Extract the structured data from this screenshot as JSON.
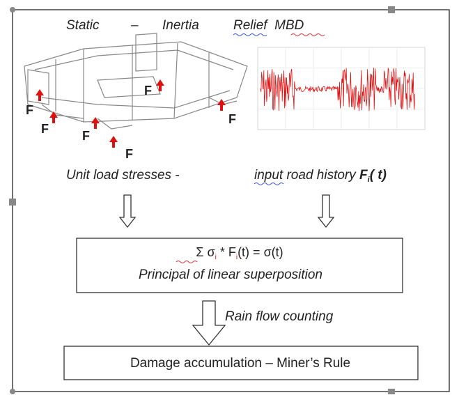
{
  "header": {
    "static": "Static",
    "dash": "–",
    "inertia": "Inertia",
    "relief": "Relief  MBD"
  },
  "forces": [
    "F",
    "F",
    "F",
    "F",
    "F",
    "F"
  ],
  "left_caption": "Unit load stresses -",
  "right_caption": {
    "input": "input",
    "text": " road history ",
    "symbol": "F",
    "subscript": "i",
    "arg": "( t)"
  },
  "formula_box": {
    "sum": "Σ σ",
    "sub1": "i",
    "mid": " * F",
    "sub2": "i",
    "rest": "(t) = σ(t)",
    "caption": "Principal of linear superposition"
  },
  "arrow_label": "Rain flow counting",
  "result_box": "Damage accumulation – Miner’s Rule"
}
